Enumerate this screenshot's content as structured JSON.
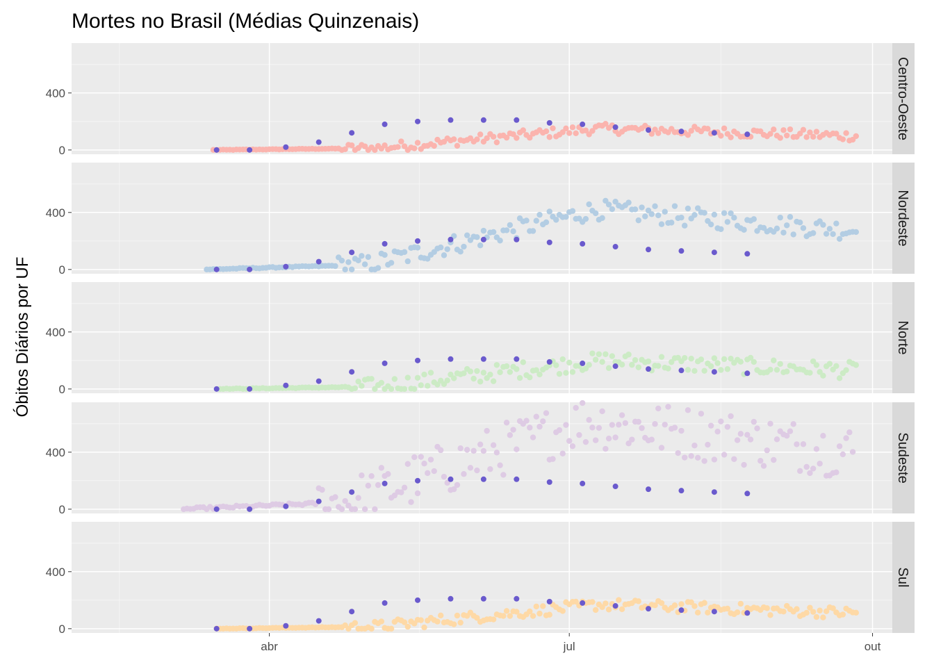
{
  "chart_data": {
    "type": "scatter",
    "title": "Mortes no Brasil (Médias Quinzenais)",
    "xlabel": "",
    "ylabel": "Óbitos Diários por UF",
    "x_axis": {
      "type": "date",
      "ticks": [
        "abr",
        "jul",
        "out"
      ],
      "tick_dates": [
        "2020-04-01",
        "2020-07-01",
        "2020-10-01"
      ],
      "range": [
        "2020-02-01",
        "2020-10-07"
      ]
    },
    "y_axis": {
      "ticks": [
        0,
        400
      ],
      "range": [
        -30,
        750
      ]
    },
    "grid": true,
    "facet_colors": [
      "#FBB4AE",
      "#B3CDE3",
      "#CCEBC5",
      "#DECBE4",
      "#FED9A6"
    ],
    "mean_point_color": "#6A5ACD",
    "mean_point_dates": [
      "2020-03-16",
      "2020-03-26",
      "2020-04-06",
      "2020-04-16",
      "2020-04-26",
      "2020-05-06",
      "2020-05-16",
      "2020-05-26",
      "2020-06-05",
      "2020-06-15",
      "2020-06-25",
      "2020-07-05",
      "2020-07-15",
      "2020-07-25",
      "2020-08-04",
      "2020-08-14",
      "2020-08-24"
    ],
    "facets": [
      {
        "label": "Centro-Oeste",
        "points": {
          "start_date": "2020-03-15",
          "end_date": "2020-09-26",
          "max_value": 150,
          "noise": 35
        },
        "mean_points": [
          0,
          0,
          20,
          55,
          120,
          180,
          200,
          210,
          210,
          210,
          190,
          180,
          160,
          140,
          130,
          120,
          110
        ]
      },
      {
        "label": "Nordeste",
        "points": {
          "start_date": "2020-03-13",
          "end_date": "2020-09-26",
          "max_value": 420,
          "noise": 70
        },
        "mean_points": [
          0,
          0,
          20,
          55,
          120,
          180,
          200,
          210,
          210,
          210,
          190,
          180,
          160,
          140,
          130,
          120,
          110
        ]
      },
      {
        "label": "Norte",
        "points": {
          "start_date": "2020-03-17",
          "end_date": "2020-09-26",
          "max_value": 200,
          "noise": 60
        },
        "mean_points": [
          0,
          0,
          25,
          55,
          120,
          180,
          200,
          210,
          210,
          210,
          190,
          180,
          160,
          140,
          130,
          120,
          110
        ]
      },
      {
        "label": "Sudeste",
        "points": {
          "start_date": "2020-03-06",
          "end_date": "2020-09-25",
          "max_value": 620,
          "noise": 190
        },
        "mean_points": [
          0,
          0,
          20,
          55,
          120,
          180,
          200,
          210,
          210,
          210,
          190,
          180,
          160,
          140,
          130,
          120,
          110
        ]
      },
      {
        "label": "Sul",
        "points": {
          "start_date": "2020-03-16",
          "end_date": "2020-09-26",
          "max_value": 170,
          "noise": 40
        },
        "mean_points": [
          0,
          0,
          20,
          55,
          120,
          180,
          200,
          210,
          210,
          210,
          190,
          180,
          160,
          140,
          130,
          120,
          110
        ]
      }
    ]
  }
}
